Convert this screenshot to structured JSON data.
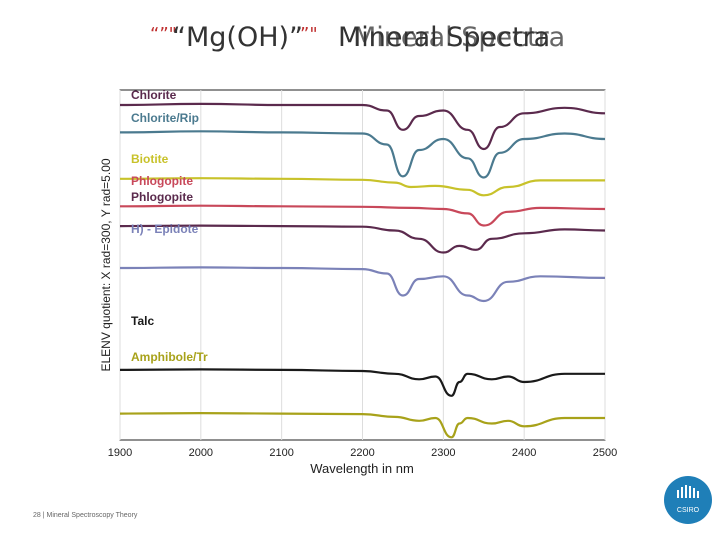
{
  "slide": {
    "title_parts": [
      "“”\"",
      "“Mg(OH)”",
      "”\"",
      "Mineral Spectra",
      "Mineral Spectra"
    ],
    "footer": "28 | Mineral Spectroscopy Theory",
    "logo_text": "CSIRO"
  },
  "chart_data": {
    "type": "line",
    "xlabel": "Wavelength in nm",
    "ylabel": "ELENV quotient: X rad=300, Y rad=5.00",
    "xlim": [
      1900,
      2500
    ],
    "xticks": [
      1900,
      2000,
      2100,
      2200,
      2300,
      2400,
      2500
    ],
    "grid": "vertical",
    "series": [
      {
        "name": "Chlorite",
        "color": "#5b2a4d",
        "points": [
          [
            1900,
            0.9
          ],
          [
            2000,
            0.92
          ],
          [
            2100,
            0.9
          ],
          [
            2200,
            0.9
          ],
          [
            2230,
            0.8
          ],
          [
            2250,
            0.45
          ],
          [
            2270,
            0.7
          ],
          [
            2300,
            0.8
          ],
          [
            2330,
            0.45
          ],
          [
            2350,
            0.1
          ],
          [
            2370,
            0.5
          ],
          [
            2400,
            0.75
          ],
          [
            2450,
            0.85
          ],
          [
            2500,
            0.75
          ]
        ]
      },
      {
        "name": "Chlorite/Rip",
        "color": "#4b7a8f",
        "points": [
          [
            1900,
            0.82
          ],
          [
            2000,
            0.84
          ],
          [
            2100,
            0.82
          ],
          [
            2200,
            0.8
          ],
          [
            2230,
            0.6
          ],
          [
            2250,
            0.02
          ],
          [
            2270,
            0.5
          ],
          [
            2300,
            0.7
          ],
          [
            2330,
            0.35
          ],
          [
            2350,
            0.0
          ],
          [
            2370,
            0.45
          ],
          [
            2400,
            0.7
          ],
          [
            2450,
            0.8
          ],
          [
            2500,
            0.7
          ]
        ]
      },
      {
        "name": "Biotite",
        "color": "#c8c22a",
        "points": [
          [
            1900,
            0.65
          ],
          [
            2000,
            0.66
          ],
          [
            2100,
            0.65
          ],
          [
            2200,
            0.63
          ],
          [
            2240,
            0.58
          ],
          [
            2260,
            0.5
          ],
          [
            2290,
            0.52
          ],
          [
            2330,
            0.45
          ],
          [
            2350,
            0.35
          ],
          [
            2380,
            0.5
          ],
          [
            2420,
            0.62
          ],
          [
            2500,
            0.62
          ]
        ]
      },
      {
        "name": "Phlogopite",
        "color": "#c8485a",
        "points": [
          [
            1900,
            0.55
          ],
          [
            2000,
            0.56
          ],
          [
            2100,
            0.55
          ],
          [
            2200,
            0.54
          ],
          [
            2260,
            0.52
          ],
          [
            2300,
            0.5
          ],
          [
            2330,
            0.42
          ],
          [
            2350,
            0.2
          ],
          [
            2380,
            0.45
          ],
          [
            2420,
            0.52
          ],
          [
            2500,
            0.5
          ]
        ]
      },
      {
        "name": "Phlogopite",
        "color": "#5b2a4d",
        "points": [
          [
            1900,
            0.48
          ],
          [
            2000,
            0.49
          ],
          [
            2100,
            0.48
          ],
          [
            2200,
            0.47
          ],
          [
            2240,
            0.4
          ],
          [
            2270,
            0.25
          ],
          [
            2300,
            0.0
          ],
          [
            2320,
            0.12
          ],
          [
            2340,
            0.05
          ],
          [
            2360,
            0.25
          ],
          [
            2400,
            0.35
          ],
          [
            2450,
            0.42
          ],
          [
            2500,
            0.4
          ]
        ]
      },
      {
        "name": "H) - Epidote",
        "color": "#7b82b8",
        "points": [
          [
            1900,
            0.3
          ],
          [
            2000,
            0.31
          ],
          [
            2100,
            0.3
          ],
          [
            2200,
            0.28
          ],
          [
            2230,
            0.2
          ],
          [
            2250,
            -0.2
          ],
          [
            2270,
            0.1
          ],
          [
            2300,
            0.15
          ],
          [
            2330,
            -0.2
          ],
          [
            2350,
            -0.3
          ],
          [
            2380,
            0.05
          ],
          [
            2420,
            0.15
          ],
          [
            2500,
            0.12
          ]
        ]
      },
      {
        "name": "Talc",
        "color": "#1a1a1a",
        "points": [
          [
            1900,
            0.12
          ],
          [
            2000,
            0.13
          ],
          [
            2100,
            0.12
          ],
          [
            2200,
            0.1
          ],
          [
            2240,
            0.05
          ],
          [
            2270,
            -0.05
          ],
          [
            2290,
            0.0
          ],
          [
            2310,
            -0.35
          ],
          [
            2320,
            -0.1
          ],
          [
            2330,
            0.05
          ],
          [
            2360,
            -0.05
          ],
          [
            2380,
            0.0
          ],
          [
            2400,
            -0.1
          ],
          [
            2450,
            0.05
          ],
          [
            2500,
            0.05
          ]
        ]
      },
      {
        "name": "Amphibole/Tr",
        "color": "#a8a21a",
        "points": [
          [
            1900,
            -0.02
          ],
          [
            2000,
            -0.01
          ],
          [
            2100,
            -0.02
          ],
          [
            2200,
            -0.03
          ],
          [
            2240,
            -0.08
          ],
          [
            2270,
            -0.15
          ],
          [
            2290,
            -0.1
          ],
          [
            2310,
            -0.45
          ],
          [
            2320,
            -0.2
          ],
          [
            2330,
            -0.1
          ],
          [
            2360,
            -0.2
          ],
          [
            2380,
            -0.15
          ],
          [
            2400,
            -0.25
          ],
          [
            2450,
            -0.1
          ],
          [
            2500,
            -0.1
          ]
        ]
      }
    ]
  }
}
